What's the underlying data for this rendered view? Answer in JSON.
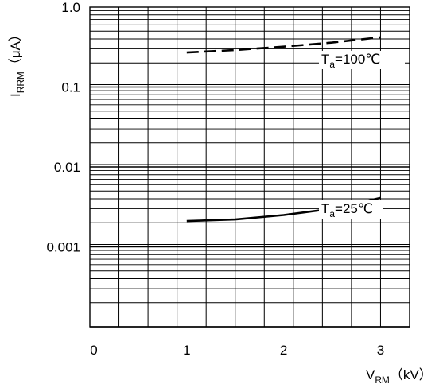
{
  "chart_data": {
    "type": "line",
    "title": "",
    "xlabel": {
      "main": "V",
      "sub": "RM",
      "unit": "（kV）"
    },
    "ylabel": {
      "main": "I",
      "sub": "RRM",
      "unit": "（μA）"
    },
    "xlim": [
      0,
      3.3
    ],
    "ylim": [
      0.0001,
      1.0
    ],
    "yscale": "log",
    "grid": true,
    "x_ticks": [
      {
        "value": 0,
        "label": "0"
      },
      {
        "value": 1,
        "label": "1"
      },
      {
        "value": 2,
        "label": "2"
      },
      {
        "value": 3,
        "label": "3"
      }
    ],
    "y_ticks": [
      {
        "value": 1.0,
        "label": "1.0"
      },
      {
        "value": 0.1,
        "label": "0.1"
      },
      {
        "value": 0.01,
        "label": "0.01"
      },
      {
        "value": 0.001,
        "label": "0.001"
      }
    ],
    "series": [
      {
        "name": "T_a=100℃",
        "style": "dashed",
        "x": [
          1.0,
          1.5,
          2.0,
          2.5,
          3.0
        ],
        "y": [
          0.27,
          0.29,
          0.32,
          0.36,
          0.42
        ]
      },
      {
        "name": "T_a=25℃",
        "style": "solid",
        "x": [
          1.0,
          1.5,
          2.0,
          2.5,
          3.0
        ],
        "y": [
          0.0021,
          0.0022,
          0.0025,
          0.003,
          0.0041
        ]
      }
    ],
    "annotations": [
      {
        "series": 0,
        "main": "T",
        "sub": "a",
        "rest": "=100℃"
      },
      {
        "series": 1,
        "main": "T",
        "sub": "a",
        "rest": "=25℃"
      }
    ]
  }
}
